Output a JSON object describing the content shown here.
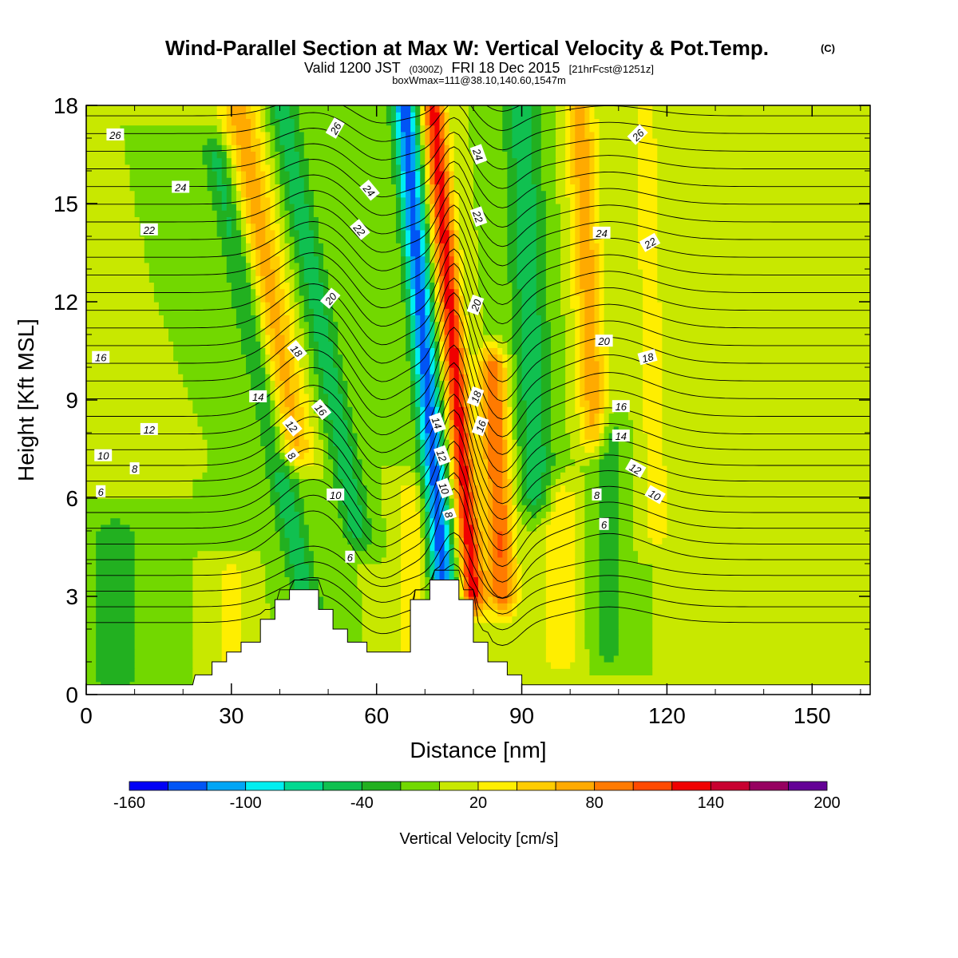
{
  "chart_data": {
    "type": "heatmap",
    "title": "Wind-Parallel Section at Max W: Vertical Velocity & Pot.Temp.",
    "title_mark": "(C)",
    "subtitle": {
      "part1": "Valid 1200 JST",
      "part2": "(0300Z)",
      "part3": "FRI 18 Dec 2015",
      "part4": "[21hrFcst@1251z]"
    },
    "subtitle2": "boxWmax=111@38.10,140.60,1547m",
    "xlabel": "Distance [nm]",
    "ylabel": "Height [Kft MSL]",
    "xlim": [
      0,
      162
    ],
    "ylim": [
      0,
      18
    ],
    "x_ticks": [
      "0",
      "30",
      "60",
      "90",
      "120",
      "150"
    ],
    "y_ticks": [
      "0",
      "3",
      "6",
      "9",
      "12",
      "15",
      "18"
    ],
    "colorbar": {
      "label": "Vertical Velocity [cm/s]",
      "ticks": [
        "-160",
        "-100",
        "-40",
        "20",
        "80",
        "140",
        "200"
      ],
      "range": [
        -160,
        200
      ],
      "step": 20,
      "colors": [
        "#0000f5",
        "#0055f5",
        "#00a5f5",
        "#00eef0",
        "#00d890",
        "#10c050",
        "#22b020",
        "#72d800",
        "#c8e800",
        "#ffee00",
        "#ffcc00",
        "#ffaa00",
        "#ff7a00",
        "#ff4a00",
        "#f00000",
        "#c80030",
        "#960060",
        "#640096"
      ]
    },
    "background_velocity": 0,
    "velocity_features": [
      {
        "x": 47,
        "y0": 1.8,
        "y1": 16.5,
        "slope": -1.35,
        "halfwidth": 3.2,
        "value": -50
      },
      {
        "x": 43,
        "y0": 7.5,
        "y1": 18,
        "slope": -1.1,
        "halfwidth": 4.0,
        "value": 70
      },
      {
        "x": 56,
        "y0": 5,
        "y1": 18,
        "slope": -1.2,
        "halfwidth": 3.2,
        "value": -50
      },
      {
        "x": 74,
        "y0": 3,
        "y1": 18,
        "slope": -0.55,
        "halfwidth": 2.6,
        "value": -130
      },
      {
        "x": 80,
        "y0": 3,
        "y1": 18,
        "slope": -0.55,
        "halfwidth": 2.4,
        "value": 130
      },
      {
        "x": 86,
        "y0": 3,
        "y1": 10,
        "slope": -0.3,
        "halfwidth": 3.0,
        "value": 100
      },
      {
        "x": 93,
        "y0": 6,
        "y1": 18,
        "slope": -0.25,
        "halfwidth": 4.0,
        "value": -50
      },
      {
        "x": 105,
        "y0": 8,
        "y1": 18,
        "slope": -0.3,
        "halfwidth": 3.0,
        "value": 70
      },
      {
        "x": 108,
        "y0": 1.5,
        "y1": 8,
        "slope": 0.0,
        "halfwidth": 3.0,
        "value": -40
      },
      {
        "x": 118,
        "y0": 5,
        "y1": 18,
        "slope": -0.2,
        "halfwidth": 3.0,
        "value": 30
      },
      {
        "x": 98,
        "y0": 1.2,
        "y1": 6,
        "slope": 0.0,
        "halfwidth": 3.5,
        "value": 40
      },
      {
        "x": 67,
        "y0": 1.5,
        "y1": 6,
        "slope": 0.0,
        "halfwidth": 3.0,
        "value": 40
      },
      {
        "x": 30,
        "y0": 0.8,
        "y1": 3.5,
        "slope": 0.0,
        "halfwidth": 3.0,
        "value": 35
      },
      {
        "x": 6,
        "y0": 0.5,
        "y1": 5,
        "slope": 0.0,
        "halfwidth": 6.0,
        "value": -30
      },
      {
        "x": 150,
        "y0": 1.5,
        "y1": 8,
        "slope": 0.0,
        "halfwidth": 12.0,
        "value": 10
      }
    ],
    "terrain": [
      [
        0,
        0.3
      ],
      [
        22,
        0.3
      ],
      [
        22.5,
        0.6
      ],
      [
        26,
        0.6
      ],
      [
        26,
        1.0
      ],
      [
        29,
        1.0
      ],
      [
        29,
        1.3
      ],
      [
        32,
        1.3
      ],
      [
        32,
        1.6
      ],
      [
        36,
        1.6
      ],
      [
        36,
        2.3
      ],
      [
        39,
        2.3
      ],
      [
        39,
        2.9
      ],
      [
        42,
        2.9
      ],
      [
        42,
        3.2
      ],
      [
        48,
        3.2
      ],
      [
        48,
        2.6
      ],
      [
        51,
        2.6
      ],
      [
        51,
        2.0
      ],
      [
        54,
        2.0
      ],
      [
        54,
        1.6
      ],
      [
        58,
        1.6
      ],
      [
        58,
        1.3
      ],
      [
        67,
        1.3
      ],
      [
        67,
        2.9
      ],
      [
        71,
        2.9
      ],
      [
        71,
        3.5
      ],
      [
        77,
        3.5
      ],
      [
        77,
        2.9
      ],
      [
        80,
        2.9
      ],
      [
        80,
        1.6
      ],
      [
        83,
        1.6
      ],
      [
        83,
        1.0
      ],
      [
        87,
        1.0
      ],
      [
        87,
        0.6
      ],
      [
        90,
        0.6
      ],
      [
        90,
        0.3
      ],
      [
        162,
        0.3
      ]
    ],
    "contour_labels": [
      {
        "text": "26",
        "x": 6,
        "y": 17.1,
        "angle": 0
      },
      {
        "text": "24",
        "x": 19.5,
        "y": 15.5,
        "angle": 0
      },
      {
        "text": "22",
        "x": 13,
        "y": 14.2,
        "angle": 0
      },
      {
        "text": "16",
        "x": 3,
        "y": 10.3,
        "angle": 0
      },
      {
        "text": "14",
        "x": 35.5,
        "y": 9.1,
        "angle": 0
      },
      {
        "text": "12",
        "x": 13,
        "y": 8.1,
        "angle": 0
      },
      {
        "text": "10",
        "x": 3.5,
        "y": 7.3,
        "angle": 0
      },
      {
        "text": "8",
        "x": 10,
        "y": 6.9,
        "angle": 0
      },
      {
        "text": "6",
        "x": 3,
        "y": 6.2,
        "angle": 0
      },
      {
        "text": "26",
        "x": 51.5,
        "y": 17.3,
        "angle": -60
      },
      {
        "text": "24",
        "x": 58.5,
        "y": 15.4,
        "angle": 50
      },
      {
        "text": "22",
        "x": 56.5,
        "y": 14.2,
        "angle": 50
      },
      {
        "text": "20",
        "x": 50.5,
        "y": 12.1,
        "angle": -50
      },
      {
        "text": "18",
        "x": 43.5,
        "y": 10.5,
        "angle": 50
      },
      {
        "text": "16",
        "x": 48.5,
        "y": 8.7,
        "angle": 50
      },
      {
        "text": "12",
        "x": 42.5,
        "y": 8.2,
        "angle": 50
      },
      {
        "text": "8",
        "x": 42.5,
        "y": 7.3,
        "angle": 50
      },
      {
        "text": "10",
        "x": 51.5,
        "y": 6.1,
        "angle": 0
      },
      {
        "text": "6",
        "x": 54.5,
        "y": 4.2,
        "angle": 0
      },
      {
        "text": "24",
        "x": 81,
        "y": 16.5,
        "angle": 70
      },
      {
        "text": "22",
        "x": 81,
        "y": 14.6,
        "angle": 70
      },
      {
        "text": "20",
        "x": 80.5,
        "y": 11.9,
        "angle": -70
      },
      {
        "text": "18",
        "x": 80.5,
        "y": 9.1,
        "angle": -70
      },
      {
        "text": "16",
        "x": 81.5,
        "y": 8.2,
        "angle": -70
      },
      {
        "text": "14",
        "x": 72.5,
        "y": 8.3,
        "angle": 70
      },
      {
        "text": "12",
        "x": 73.5,
        "y": 7.3,
        "angle": 70
      },
      {
        "text": "10",
        "x": 74,
        "y": 6.3,
        "angle": 70
      },
      {
        "text": "8",
        "x": 75,
        "y": 5.5,
        "angle": 70
      },
      {
        "text": "26",
        "x": 114,
        "y": 17.1,
        "angle": -45
      },
      {
        "text": "24",
        "x": 106.5,
        "y": 14.1,
        "angle": 0
      },
      {
        "text": "22",
        "x": 116.5,
        "y": 13.8,
        "angle": -30
      },
      {
        "text": "20",
        "x": 107,
        "y": 10.8,
        "angle": 0
      },
      {
        "text": "18",
        "x": 116,
        "y": 10.3,
        "angle": -15
      },
      {
        "text": "16",
        "x": 110.5,
        "y": 8.8,
        "angle": 0
      },
      {
        "text": "14",
        "x": 110.5,
        "y": 7.9,
        "angle": 0
      },
      {
        "text": "12",
        "x": 113.5,
        "y": 6.9,
        "angle": 30
      },
      {
        "text": "10",
        "x": 117.5,
        "y": 6.1,
        "angle": 30
      },
      {
        "text": "8",
        "x": 105.5,
        "y": 6.1,
        "angle": 0
      },
      {
        "text": "6",
        "x": 107,
        "y": 5.2,
        "angle": 0
      }
    ]
  }
}
